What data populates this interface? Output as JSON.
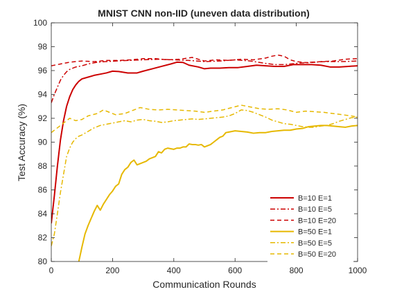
{
  "chart_data": {
    "type": "line",
    "title": "MNIST CNN non-IID (uneven data distribution)",
    "xlabel": "Communication Rounds",
    "ylabel": "Test Accuracy (%)",
    "xlim": [
      0,
      1000
    ],
    "ylim": [
      80,
      100
    ],
    "xticks": [
      0,
      200,
      400,
      600,
      800,
      1000
    ],
    "yticks": [
      80,
      82,
      84,
      86,
      88,
      90,
      92,
      94,
      96,
      98,
      100
    ],
    "grid": false,
    "legend_position": "bottom-right",
    "colors": {
      "red": "#cc0000",
      "yellow": "#e6b800",
      "axis": "#262626"
    },
    "series": [
      {
        "name": "B=10 E=1",
        "color": "#cc0000",
        "dash": "solid",
        "width": 2,
        "points": [
          [
            0,
            83.2
          ],
          [
            10,
            85.5
          ],
          [
            20,
            88
          ],
          [
            30,
            90.2
          ],
          [
            40,
            91.8
          ],
          [
            50,
            93
          ],
          [
            60,
            93.8
          ],
          [
            70,
            94.4
          ],
          [
            80,
            94.8
          ],
          [
            90,
            95.1
          ],
          [
            100,
            95.3
          ],
          [
            120,
            95.45
          ],
          [
            140,
            95.6
          ],
          [
            160,
            95.7
          ],
          [
            180,
            95.8
          ],
          [
            200,
            95.95
          ],
          [
            220,
            95.92
          ],
          [
            250,
            95.8
          ],
          [
            280,
            95.8
          ],
          [
            300,
            95.95
          ],
          [
            330,
            96.15
          ],
          [
            360,
            96.35
          ],
          [
            390,
            96.55
          ],
          [
            410,
            96.7
          ],
          [
            430,
            96.68
          ],
          [
            450,
            96.45
          ],
          [
            480,
            96.3
          ],
          [
            500,
            96.15
          ],
          [
            520,
            96.2
          ],
          [
            550,
            96.2
          ],
          [
            580,
            96.25
          ],
          [
            610,
            96.25
          ],
          [
            640,
            96.35
          ],
          [
            670,
            96.45
          ],
          [
            700,
            96.4
          ],
          [
            730,
            96.35
          ],
          [
            760,
            96.35
          ],
          [
            790,
            96.5
          ],
          [
            820,
            96.5
          ],
          [
            850,
            96.5
          ],
          [
            880,
            96.45
          ],
          [
            910,
            96.3
          ],
          [
            940,
            96.3
          ],
          [
            970,
            96.35
          ],
          [
            1000,
            96.4
          ]
        ]
      },
      {
        "name": "B=10 E=5",
        "color": "#cc0000",
        "dash": "dashdot",
        "width": 1.5,
        "points": [
          [
            0,
            93.3
          ],
          [
            10,
            94
          ],
          [
            20,
            94.6
          ],
          [
            30,
            95.2
          ],
          [
            40,
            95.6
          ],
          [
            50,
            95.9
          ],
          [
            60,
            96.1
          ],
          [
            80,
            96.3
          ],
          [
            100,
            96.4
          ],
          [
            120,
            96.55
          ],
          [
            150,
            96.7
          ],
          [
            180,
            96.75
          ],
          [
            210,
            96.8
          ],
          [
            250,
            96.85
          ],
          [
            300,
            96.9
          ],
          [
            350,
            96.95
          ],
          [
            400,
            96.9
          ],
          [
            450,
            96.85
          ],
          [
            500,
            96.75
          ],
          [
            550,
            96.8
          ],
          [
            600,
            96.9
          ],
          [
            650,
            96.8
          ],
          [
            700,
            96.6
          ],
          [
            730,
            96.5
          ],
          [
            760,
            96.5
          ],
          [
            800,
            96.6
          ],
          [
            850,
            96.7
          ],
          [
            900,
            96.75
          ],
          [
            950,
            96.75
          ],
          [
            1000,
            96.8
          ]
        ]
      },
      {
        "name": "B=10 E=20",
        "color": "#cc0000",
        "dash": "dashed",
        "width": 1.5,
        "points": [
          [
            0,
            96.4
          ],
          [
            30,
            96.55
          ],
          [
            60,
            96.7
          ],
          [
            100,
            96.8
          ],
          [
            140,
            96.75
          ],
          [
            180,
            96.85
          ],
          [
            220,
            96.85
          ],
          [
            260,
            96.9
          ],
          [
            300,
            97
          ],
          [
            340,
            97
          ],
          [
            380,
            96.9
          ],
          [
            420,
            96.95
          ],
          [
            460,
            97.1
          ],
          [
            500,
            96.8
          ],
          [
            540,
            96.9
          ],
          [
            580,
            96.85
          ],
          [
            620,
            96.95
          ],
          [
            660,
            96.9
          ],
          [
            700,
            97.05
          ],
          [
            720,
            97.2
          ],
          [
            740,
            97.3
          ],
          [
            760,
            97.2
          ],
          [
            780,
            96.9
          ],
          [
            800,
            96.75
          ],
          [
            840,
            96.65
          ],
          [
            880,
            96.75
          ],
          [
            920,
            96.8
          ],
          [
            960,
            96.95
          ],
          [
            1000,
            97
          ]
        ]
      },
      {
        "name": "B=50 E=1",
        "color": "#e6b800",
        "dash": "solid",
        "width": 2,
        "points": [
          [
            90,
            80
          ],
          [
            100,
            81.2
          ],
          [
            110,
            82.3
          ],
          [
            120,
            83
          ],
          [
            130,
            83.6
          ],
          [
            140,
            84.2
          ],
          [
            150,
            84.7
          ],
          [
            160,
            84.3
          ],
          [
            170,
            84.8
          ],
          [
            180,
            85.2
          ],
          [
            190,
            85.6
          ],
          [
            200,
            85.9
          ],
          [
            210,
            86.3
          ],
          [
            220,
            86.5
          ],
          [
            230,
            87.3
          ],
          [
            240,
            87.7
          ],
          [
            250,
            87.9
          ],
          [
            260,
            88.3
          ],
          [
            270,
            88.5
          ],
          [
            280,
            88.1
          ],
          [
            290,
            88.2
          ],
          [
            300,
            88.3
          ],
          [
            310,
            88.4
          ],
          [
            320,
            88.6
          ],
          [
            330,
            88.7
          ],
          [
            340,
            88.8
          ],
          [
            350,
            89.2
          ],
          [
            360,
            89.1
          ],
          [
            370,
            89.4
          ],
          [
            380,
            89.5
          ],
          [
            390,
            89.45
          ],
          [
            400,
            89.4
          ],
          [
            410,
            89.5
          ],
          [
            420,
            89.5
          ],
          [
            430,
            89.6
          ],
          [
            440,
            89.6
          ],
          [
            450,
            89.85
          ],
          [
            460,
            89.8
          ],
          [
            470,
            89.8
          ],
          [
            480,
            89.75
          ],
          [
            490,
            89.8
          ],
          [
            500,
            89.6
          ],
          [
            510,
            89.7
          ],
          [
            520,
            89.8
          ],
          [
            530,
            90.0
          ],
          [
            540,
            90.2
          ],
          [
            550,
            90.4
          ],
          [
            560,
            90.5
          ],
          [
            570,
            90.8
          ],
          [
            580,
            90.85
          ],
          [
            590,
            90.9
          ],
          [
            600,
            90.95
          ],
          [
            620,
            90.9
          ],
          [
            640,
            90.85
          ],
          [
            660,
            90.75
          ],
          [
            680,
            90.8
          ],
          [
            700,
            90.8
          ],
          [
            720,
            90.9
          ],
          [
            740,
            90.95
          ],
          [
            760,
            91.0
          ],
          [
            780,
            91.0
          ],
          [
            800,
            91.1
          ],
          [
            820,
            91.15
          ],
          [
            840,
            91.3
          ],
          [
            860,
            91.35
          ],
          [
            880,
            91.4
          ],
          [
            900,
            91.4
          ],
          [
            920,
            91.35
          ],
          [
            940,
            91.3
          ],
          [
            960,
            91.25
          ],
          [
            980,
            91.35
          ],
          [
            1000,
            91.4
          ]
        ]
      },
      {
        "name": "B=50 E=5",
        "color": "#e6b800",
        "dash": "dashdot",
        "width": 1.5,
        "points": [
          [
            0,
            81.3
          ],
          [
            10,
            82.3
          ],
          [
            20,
            84
          ],
          [
            30,
            85.8
          ],
          [
            40,
            87.3
          ],
          [
            50,
            88.8
          ],
          [
            60,
            89.5
          ],
          [
            70,
            90
          ],
          [
            80,
            90.3
          ],
          [
            90,
            90.5
          ],
          [
            100,
            90.6
          ],
          [
            120,
            90.9
          ],
          [
            140,
            91.2
          ],
          [
            160,
            91.4
          ],
          [
            180,
            91.5
          ],
          [
            200,
            91.6
          ],
          [
            220,
            91.7
          ],
          [
            240,
            91.8
          ],
          [
            260,
            91.7
          ],
          [
            280,
            91.85
          ],
          [
            300,
            91.9
          ],
          [
            320,
            91.8
          ],
          [
            340,
            91.75
          ],
          [
            360,
            91.65
          ],
          [
            380,
            91.7
          ],
          [
            400,
            91.8
          ],
          [
            420,
            91.85
          ],
          [
            440,
            91.9
          ],
          [
            460,
            91.95
          ],
          [
            480,
            91.9
          ],
          [
            500,
            91.95
          ],
          [
            520,
            92.0
          ],
          [
            540,
            92.05
          ],
          [
            560,
            92.1
          ],
          [
            580,
            92.2
          ],
          [
            600,
            92.4
          ],
          [
            620,
            92.7
          ],
          [
            640,
            92.65
          ],
          [
            660,
            92.5
          ],
          [
            680,
            92.3
          ],
          [
            700,
            92.1
          ],
          [
            720,
            91.85
          ],
          [
            740,
            91.7
          ],
          [
            760,
            91.55
          ],
          [
            780,
            91.5
          ],
          [
            800,
            91.4
          ],
          [
            820,
            91.3
          ],
          [
            840,
            91.25
          ],
          [
            860,
            91.25
          ],
          [
            880,
            91.35
          ],
          [
            900,
            91.4
          ],
          [
            920,
            91.55
          ],
          [
            940,
            91.75
          ],
          [
            960,
            91.9
          ],
          [
            980,
            92.05
          ],
          [
            1000,
            92.1
          ]
        ]
      },
      {
        "name": "B=50 E=20",
        "color": "#e6b800",
        "dash": "dashed",
        "width": 1.5,
        "points": [
          [
            0,
            90.8
          ],
          [
            20,
            91.2
          ],
          [
            40,
            91.6
          ],
          [
            60,
            92.0
          ],
          [
            80,
            91.8
          ],
          [
            100,
            91.9
          ],
          [
            120,
            92.2
          ],
          [
            150,
            92.4
          ],
          [
            170,
            92.7
          ],
          [
            190,
            92.5
          ],
          [
            210,
            92.3
          ],
          [
            240,
            92.4
          ],
          [
            260,
            92.6
          ],
          [
            290,
            92.9
          ],
          [
            320,
            92.75
          ],
          [
            350,
            92.7
          ],
          [
            380,
            92.75
          ],
          [
            410,
            92.7
          ],
          [
            440,
            92.65
          ],
          [
            470,
            92.6
          ],
          [
            500,
            92.5
          ],
          [
            530,
            92.6
          ],
          [
            560,
            92.7
          ],
          [
            590,
            92.9
          ],
          [
            620,
            93.1
          ],
          [
            650,
            92.95
          ],
          [
            680,
            92.8
          ],
          [
            710,
            92.75
          ],
          [
            740,
            92.8
          ],
          [
            770,
            92.7
          ],
          [
            800,
            92.5
          ],
          [
            830,
            92.6
          ],
          [
            860,
            92.55
          ],
          [
            890,
            92.5
          ],
          [
            920,
            92.4
          ],
          [
            950,
            92.3
          ],
          [
            980,
            92.2
          ],
          [
            1000,
            92.1
          ]
        ]
      }
    ]
  }
}
